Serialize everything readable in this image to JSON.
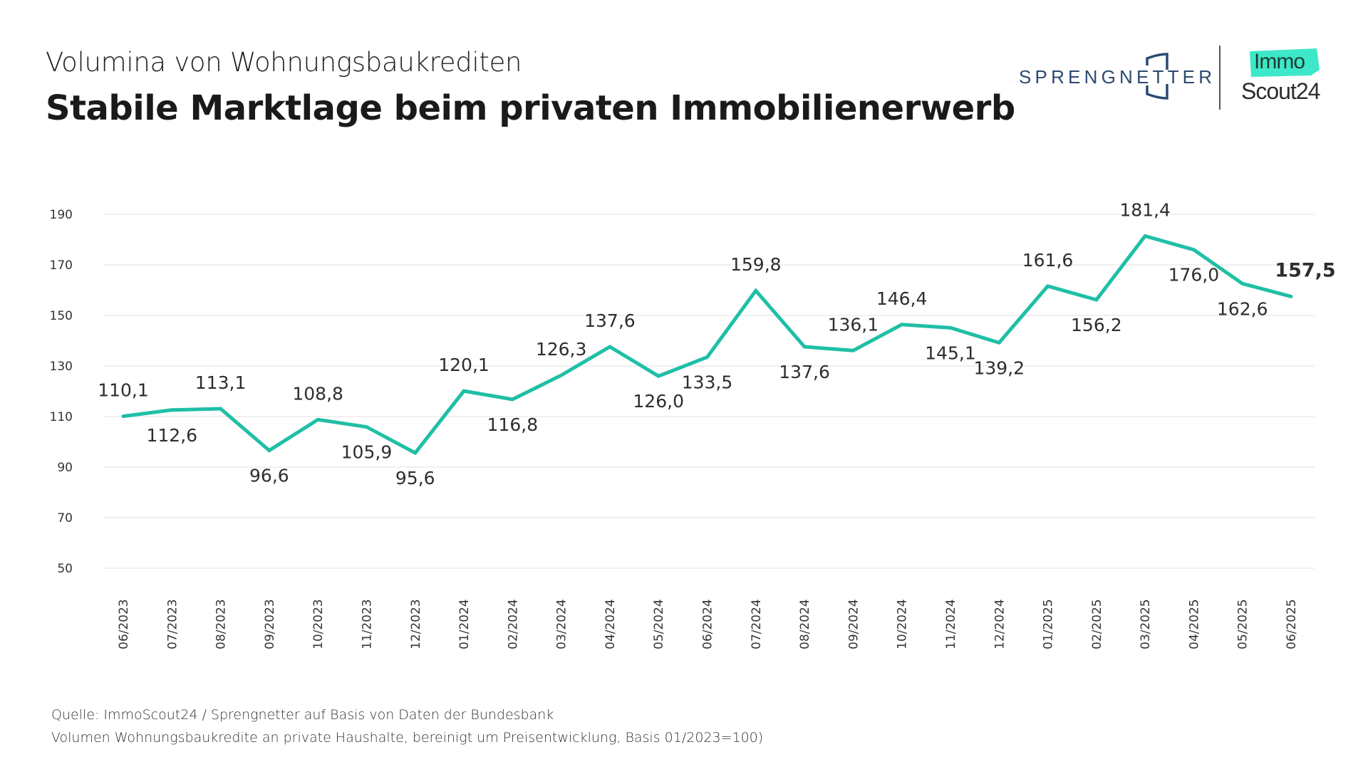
{
  "header": {
    "subtitle": "Volumina von Wohnungsbaukrediten",
    "title": "Stabile Marktlage beim privaten Immobilienerwerb"
  },
  "logos": {
    "sprengnetter": "SPRENGNETTER",
    "immo": "Immo",
    "scout": "Scout24",
    "immo_badge_color": "#3de8c8",
    "sprengnetter_color": "#2b4a70"
  },
  "chart_data": {
    "type": "line",
    "title": "Stabile Marktlage beim privaten Immobilienerwerb",
    "subtitle": "Volumina von Wohnungsbaukrediten",
    "xlabel": "",
    "ylabel": "",
    "ylim": [
      50,
      190
    ],
    "yticks": [
      50,
      70,
      90,
      110,
      130,
      150,
      170,
      190
    ],
    "grid": true,
    "legend": "none",
    "line_color": "#1fbfa6",
    "categories": [
      "06/2023",
      "07/2023",
      "08/2023",
      "09/2023",
      "10/2023",
      "11/2023",
      "12/2023",
      "01/2024",
      "02/2024",
      "03/2024",
      "04/2024",
      "05/2024",
      "06/2024",
      "07/2024",
      "08/2024",
      "09/2024",
      "10/2024",
      "11/2024",
      "12/2024",
      "01/2025",
      "02/2025",
      "03/2025",
      "04/2025",
      "05/2025",
      "06/2025"
    ],
    "series": [
      {
        "name": "Volumen Wohnungsbaukredite",
        "values": [
          110.1,
          112.6,
          113.1,
          96.6,
          108.8,
          105.9,
          95.6,
          120.1,
          116.8,
          126.3,
          137.6,
          126.0,
          133.5,
          159.8,
          137.6,
          136.1,
          146.4,
          145.1,
          139.2,
          161.6,
          156.2,
          181.4,
          176.0,
          162.6,
          157.5
        ],
        "labels": [
          "110,1",
          "112,6",
          "113,1",
          "96,6",
          "108,8",
          "105,9",
          "95,6",
          "120,1",
          "116,8",
          "126,3",
          "137,6",
          "126,0",
          "133,5",
          "159,8",
          "137,6",
          "136,1",
          "146,4",
          "145,1",
          "139,2",
          "161,6",
          "156,2",
          "181,4",
          "176,0",
          "162,6",
          "157,5"
        ],
        "label_positions": [
          "above",
          "below",
          "above",
          "below",
          "above",
          "below",
          "below",
          "above",
          "below",
          "above",
          "above",
          "below",
          "below",
          "above",
          "below",
          "above",
          "above",
          "below",
          "below",
          "above",
          "below",
          "above",
          "below",
          "below",
          "right-above"
        ],
        "highlight_last": true
      }
    ]
  },
  "footer": {
    "source": "Quelle: ImmoScout24 / Sprengnetter auf Basis von Daten der Bundesbank",
    "note": "Volumen Wohnungsbaukredite an private Haushalte, bereinigt um Preisentwicklung, Basis 01/2023=100)"
  }
}
